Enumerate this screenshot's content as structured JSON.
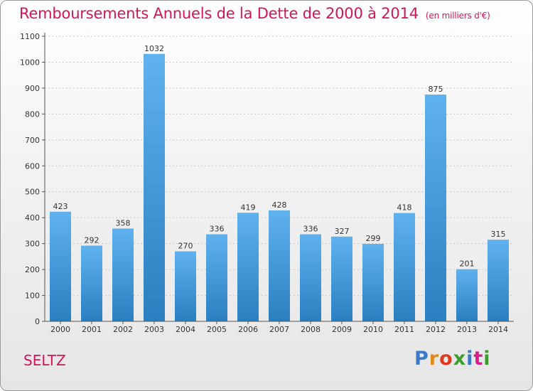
{
  "title": "Remboursements Annuels de la Dette de 2000 à 2014",
  "subtitle": "(en milliers d'€)",
  "commune": "SELTZ",
  "logo": {
    "text": "Proxiti",
    "colors": [
      "#3a78c8",
      "#e08a1e",
      "#e03a1e",
      "#3a9e2e",
      "#3a78c8",
      "#d81e8a",
      "#3a9e2e"
    ]
  },
  "colors": {
    "title": "#d4145a",
    "bar_light": "#5fb2ee",
    "bar_dark": "#2a7fc0"
  },
  "chart_data": {
    "type": "bar",
    "title": "Remboursements Annuels de la Dette de 2000 à 2014",
    "subtitle": "(en milliers d'€)",
    "xlabel": "",
    "ylabel": "",
    "categories": [
      "2000",
      "2001",
      "2002",
      "2003",
      "2004",
      "2005",
      "2006",
      "2007",
      "2008",
      "2009",
      "2010",
      "2011",
      "2012",
      "2013",
      "2014"
    ],
    "values": [
      423,
      292,
      358,
      1032,
      270,
      336,
      419,
      428,
      336,
      327,
      299,
      418,
      875,
      201,
      315
    ],
    "ylim": [
      0,
      1100
    ],
    "yticks": [
      0,
      100,
      200,
      300,
      400,
      500,
      600,
      700,
      800,
      900,
      1000,
      1100
    ],
    "grid": true
  }
}
